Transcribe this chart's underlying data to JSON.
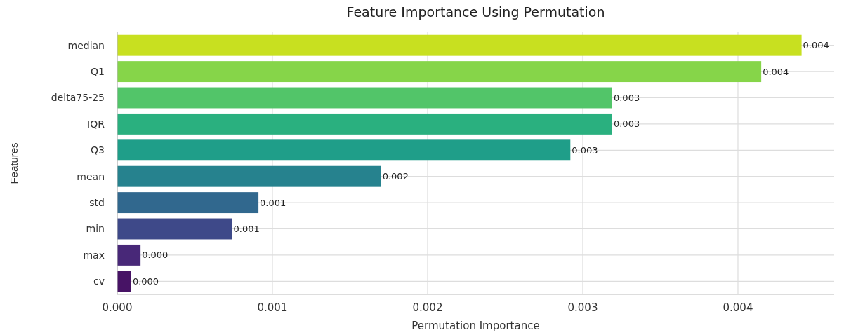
{
  "chart_data": {
    "type": "bar",
    "orientation": "horizontal",
    "title": "Feature Importance Using Permutation",
    "xlabel": "Permutation Importance",
    "ylabel": "Features",
    "categories": [
      "median",
      "Q1",
      "delta75-25",
      "IQR",
      "Q3",
      "mean",
      "std",
      "min",
      "max",
      "cv"
    ],
    "values": [
      0.00441,
      0.00415,
      0.00319,
      0.00319,
      0.00292,
      0.0017,
      0.00091,
      0.00074,
      0.00015,
      9e-05
    ],
    "colors": [
      "#c8e020",
      "#86d549",
      "#52c569",
      "#2ab07f",
      "#1f9e89",
      "#26828e",
      "#31688e",
      "#3e4989",
      "#482878",
      "#471365"
    ],
    "value_labels": [
      "0.004",
      "0.004",
      "0.003",
      "0.003",
      "0.003",
      "0.002",
      "0.001",
      "0.001",
      "0.000",
      "0.000"
    ],
    "xlim": [
      0,
      0.00462
    ],
    "xticks": [
      {
        "value": 0,
        "label": "0.000"
      },
      {
        "value": 0.001,
        "label": "0.001"
      },
      {
        "value": 0.002,
        "label": "0.002"
      },
      {
        "value": 0.003,
        "label": "0.003"
      },
      {
        "value": 0.004,
        "label": "0.004"
      }
    ],
    "grid": true
  }
}
